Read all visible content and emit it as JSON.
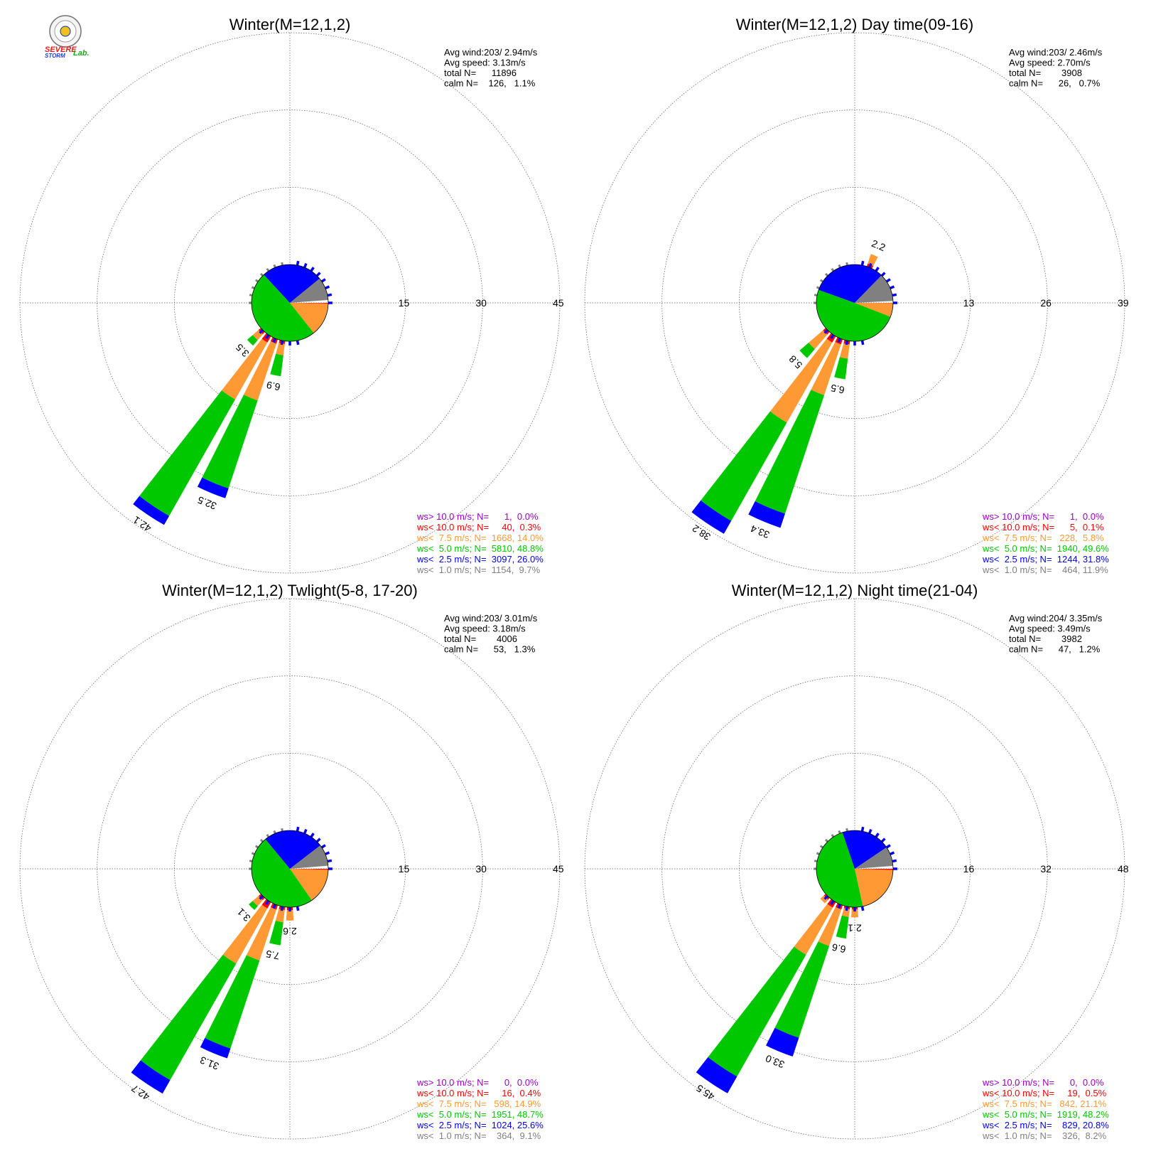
{
  "logo": {
    "line1": "SEVERE",
    "line2": "STORM",
    "lab": "Lab.",
    "colors": {
      "severe": "#e81b1b",
      "storm": "#1b3fd6",
      "lab": "#22a51f"
    }
  },
  "chart_data": [
    {
      "type": "wind-rose",
      "title": "Winter(M=12,1,2)",
      "ring_ticks": [
        "15",
        "30",
        "45"
      ],
      "ring_max": 45,
      "stats": [
        "Avg wind:203/ 2.94m/s",
        "Avg speed: 3.13m/s",
        "total N=      11896",
        "calm N=    126,   1.1%"
      ],
      "legend": [
        {
          "text": "ws> 10.0 m/s; N=      1,  0.0%",
          "color": "#9a00c8"
        },
        {
          "text": "ws< 10.0 m/s; N=     40,  0.3%",
          "color": "#ff0000"
        },
        {
          "text": "ws<  7.5 m/s; N=  1668, 14.0%",
          "color": "#ff9933"
        },
        {
          "text": "ws<  5.0 m/s; N=  5810, 48.8%",
          "color": "#00c800"
        },
        {
          "text": "ws<  2.5 m/s; N=  3097, 26.0%",
          "color": "#0000ff"
        },
        {
          "text": "ws<  1.0 m/s; N=  1154,  9.7%",
          "color": "#808080"
        }
      ],
      "pie_fractions": [
        0.0,
        0.003,
        0.14,
        0.488,
        0.26,
        0.097
      ],
      "bars": [
        {
          "dir": 202.5,
          "total": 32.5,
          "segments": [
            0.9,
            11.6,
            18.0,
            2.0
          ],
          "label": "32.5"
        },
        {
          "dir": 213.75,
          "total": 42.1,
          "segments": [
            1.4,
            12.7,
            26.0,
            2.0
          ],
          "label": "42.1"
        },
        {
          "dir": 191.25,
          "total": 6.9,
          "segments": [
            0.6,
            2.2,
            4.1
          ],
          "label": "6.9"
        },
        {
          "dir": 225.0,
          "total": 3.5,
          "segments": [
            0.6,
            1.5,
            1.4
          ],
          "label": "3.5"
        }
      ]
    },
    {
      "type": "wind-rose",
      "title": "Winter(M=12,1,2) Day time(09-16)",
      "ring_ticks": [
        "13",
        "26",
        "39"
      ],
      "ring_max": 39,
      "stats": [
        "Avg wind:203/ 2.46m/s",
        "Avg speed: 2.70m/s",
        "total N=        3908",
        "calm N=      26,   0.7%"
      ],
      "legend": [
        {
          "text": "ws> 10.0 m/s; N=      1,  0.0%",
          "color": "#9a00c8"
        },
        {
          "text": "ws< 10.0 m/s; N=      5,  0.1%",
          "color": "#ff0000"
        },
        {
          "text": "ws<  7.5 m/s; N=   228,  5.8%",
          "color": "#ff9933"
        },
        {
          "text": "ws<  5.0 m/s; N=  1940, 49.6%",
          "color": "#00c800"
        },
        {
          "text": "ws<  2.5 m/s; N=  1244, 31.8%",
          "color": "#0000ff"
        },
        {
          "text": "ws<  1.0 m/s; N=    464, 11.9%",
          "color": "#808080"
        }
      ],
      "pie_fractions": [
        0.0,
        0.001,
        0.058,
        0.496,
        0.318,
        0.119
      ],
      "bars": [
        {
          "dir": 202.5,
          "total": 33.4,
          "segments": [
            0.9,
            9.0,
            21.0,
            2.5
          ],
          "label": "33.4"
        },
        {
          "dir": 213.75,
          "total": 38.2,
          "segments": [
            1.2,
            15.5,
            19.0,
            2.5
          ],
          "label": "38.2"
        },
        {
          "dir": 191.25,
          "total": 6.5,
          "segments": [
            0.6,
            2.4,
            3.5
          ],
          "label": "6.5"
        },
        {
          "dir": 225.0,
          "total": 5.8,
          "segments": [
            0.6,
            3.2,
            2.0
          ],
          "label": "5.8"
        },
        {
          "dir": 22.5,
          "total": 2.2,
          "segments": [
            0.5,
            1.7
          ],
          "label": "2.2"
        }
      ]
    },
    {
      "type": "wind-rose",
      "title": "Winter(M=12,1,2) Twlight(5-8, 17-20)",
      "ring_ticks": [
        "15",
        "30",
        "45"
      ],
      "ring_max": 45,
      "stats": [
        "Avg wind:203/ 3.01m/s",
        "Avg speed: 3.18m/s",
        "total N=        4006",
        "calm N=      53,   1.3%"
      ],
      "legend": [
        {
          "text": "ws> 10.0 m/s; N=      0,  0.0%",
          "color": "#9a00c8"
        },
        {
          "text": "ws< 10.0 m/s; N=     16,  0.4%",
          "color": "#ff0000"
        },
        {
          "text": "ws<  7.5 m/s; N=   598, 14.9%",
          "color": "#ff9933"
        },
        {
          "text": "ws<  5.0 m/s; N=  1951, 48.7%",
          "color": "#00c800"
        },
        {
          "text": "ws<  2.5 m/s; N=  1024, 25.6%",
          "color": "#0000ff"
        },
        {
          "text": "ws<  1.0 m/s; N=    364,  9.1%",
          "color": "#808080"
        }
      ],
      "pie_fractions": [
        0.0,
        0.004,
        0.149,
        0.487,
        0.256,
        0.091
      ],
      "bars": [
        {
          "dir": 202.5,
          "total": 31.3,
          "segments": [
            0.9,
            10.4,
            18.0,
            2.0
          ],
          "label": "31.3"
        },
        {
          "dir": 213.75,
          "total": 42.7,
          "segments": [
            1.4,
            12.3,
            26.0,
            3.0
          ],
          "label": "42.7"
        },
        {
          "dir": 191.25,
          "total": 7.5,
          "segments": [
            0.6,
            2.4,
            4.5
          ],
          "label": "7.5"
        },
        {
          "dir": 180.0,
          "total": 2.6,
          "segments": [
            0.6,
            2.0
          ],
          "label": "2.6"
        },
        {
          "dir": 225.0,
          "total": 3.1,
          "segments": [
            0.6,
            1.5,
            1.0
          ],
          "label": "3.1"
        }
      ]
    },
    {
      "type": "wind-rose",
      "title": "Winter(M=12,1,2) Night time(21-04)",
      "ring_ticks": [
        "16",
        "32",
        "48"
      ],
      "ring_max": 48,
      "stats": [
        "Avg wind:204/ 3.35m/s",
        "Avg speed: 3.49m/s",
        "total N=        3982",
        "calm N=      47,   1.2%"
      ],
      "legend": [
        {
          "text": "ws> 10.0 m/s; N=      0,  0.0%",
          "color": "#9a00c8"
        },
        {
          "text": "ws< 10.0 m/s; N=     19,  0.5%",
          "color": "#ff0000"
        },
        {
          "text": "ws<  7.5 m/s; N=   842, 21.1%",
          "color": "#ff9933"
        },
        {
          "text": "ws<  5.0 m/s; N=  1919, 48.2%",
          "color": "#00c800"
        },
        {
          "text": "ws<  2.5 m/s; N=    829, 20.8%",
          "color": "#0000ff"
        },
        {
          "text": "ws<  1.0 m/s; N=    326,  8.2%",
          "color": "#808080"
        }
      ],
      "pie_fractions": [
        0.0,
        0.005,
        0.211,
        0.482,
        0.208,
        0.082
      ],
      "bars": [
        {
          "dir": 202.5,
          "total": 33.0,
          "segments": [
            0.9,
            8.0,
            20.0,
            4.1
          ],
          "label": "33.0"
        },
        {
          "dir": 213.75,
          "total": 45.5,
          "segments": [
            1.3,
            11.2,
            29.0,
            4.0
          ],
          "label": "45.5"
        },
        {
          "dir": 191.25,
          "total": 6.6,
          "segments": [
            0.5,
            1.6,
            4.5
          ],
          "label": "6.6"
        },
        {
          "dir": 180.0,
          "total": 2.1,
          "segments": [
            0.5,
            1.6
          ],
          "label": "2.1"
        },
        {
          "dir": 225.0,
          "total": 1.5,
          "segments": [
            0.5,
            1.0
          ],
          "label": ""
        }
      ]
    }
  ]
}
